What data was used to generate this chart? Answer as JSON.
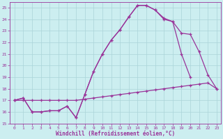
{
  "background_color": "#cceef0",
  "grid_color": "#aad4d8",
  "line_color": "#993399",
  "xlim": [
    -0.5,
    23.5
  ],
  "ylim": [
    15,
    25.5
  ],
  "yticks": [
    15,
    16,
    17,
    18,
    19,
    20,
    21,
    22,
    23,
    24,
    25
  ],
  "xticks": [
    0,
    1,
    2,
    3,
    4,
    5,
    6,
    7,
    8,
    9,
    10,
    11,
    12,
    13,
    14,
    15,
    16,
    17,
    18,
    19,
    20,
    21,
    22,
    23
  ],
  "xlabel": "Windchill (Refroidissement éolien,°C)",
  "series1_x": [
    0,
    1,
    2,
    3,
    4,
    5,
    6,
    7,
    8,
    9,
    10,
    11,
    12,
    13,
    14,
    15,
    16,
    17,
    18,
    19,
    20,
    21,
    22,
    23
  ],
  "series1_y": [
    17.0,
    17.0,
    17.0,
    17.0,
    17.0,
    17.0,
    17.0,
    17.0,
    17.1,
    17.2,
    17.3,
    17.4,
    17.5,
    17.6,
    17.7,
    17.8,
    17.9,
    18.0,
    18.1,
    18.2,
    18.3,
    18.4,
    18.5,
    18.0
  ],
  "series2_x": [
    0,
    1,
    2,
    3,
    4,
    5,
    6,
    7,
    8,
    9,
    10,
    11,
    12,
    13,
    14,
    15,
    16,
    17,
    18,
    19,
    20,
    21,
    22,
    23
  ],
  "series2_y": [
    17.0,
    17.2,
    16.0,
    16.0,
    16.1,
    16.1,
    16.5,
    15.5,
    17.5,
    19.5,
    21.0,
    22.2,
    23.1,
    24.2,
    25.2,
    25.2,
    24.8,
    24.0,
    23.8,
    22.8,
    22.7,
    21.2,
    19.2,
    18.0
  ],
  "series3_x": [
    0,
    1,
    2,
    3,
    4,
    5,
    6,
    7,
    8,
    9,
    10,
    11,
    12,
    13,
    14,
    15,
    16,
    17,
    18,
    19,
    20
  ],
  "series3_y": [
    17.0,
    17.2,
    16.0,
    16.0,
    16.1,
    16.1,
    16.5,
    15.5,
    17.5,
    19.5,
    21.0,
    22.2,
    23.1,
    24.2,
    25.2,
    25.2,
    24.8,
    24.1,
    23.8,
    21.0,
    19.0
  ]
}
